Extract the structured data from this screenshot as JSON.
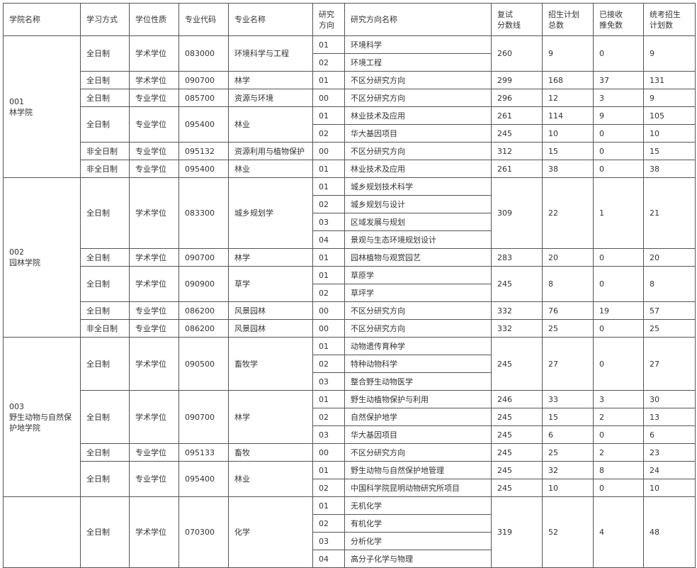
{
  "header": {
    "college": "学院名称",
    "mode": "学习方式",
    "degree": "学位性质",
    "code": "专业代码",
    "major": "专业名称",
    "dir_code": [
      "研究",
      "方向"
    ],
    "dir_name": "研究方向名称",
    "score": [
      "复试",
      "分数线"
    ],
    "total": [
      "招生计划",
      "总数"
    ],
    "recommended": [
      "已接收",
      "推免数"
    ],
    "plan": [
      "统考招生",
      "计划数"
    ]
  },
  "colleges": [
    {
      "code": "001",
      "name": "林学院",
      "majors": [
        {
          "mode": "全日制",
          "degree": "学术学位",
          "code": "083000",
          "name": "环境科学与工程",
          "score": "260",
          "total": "9",
          "recommended": "0",
          "plan": "9",
          "directions": [
            {
              "code": "01",
              "name": "环境科学"
            },
            {
              "code": "02",
              "name": "环境工程"
            }
          ]
        },
        {
          "mode": "全日制",
          "degree": "学术学位",
          "code": "090700",
          "name": "林学",
          "score": "299",
          "total": "168",
          "recommended": "37",
          "plan": "131",
          "directions": [
            {
              "code": "01",
              "name": "不区分研究方向"
            }
          ]
        },
        {
          "mode": "全日制",
          "degree": "专业学位",
          "code": "085700",
          "name": "资源与环境",
          "score": "296",
          "total": "12",
          "recommended": "3",
          "plan": "9",
          "directions": [
            {
              "code": "00",
              "name": "不区分研究方向"
            }
          ]
        },
        {
          "mode": "全日制",
          "degree": "专业学位",
          "code": "095400",
          "name": "林业",
          "directions": [
            {
              "code": "01",
              "name": "林业技术及应用",
              "score": "261",
              "total": "114",
              "recommended": "9",
              "plan": "105"
            },
            {
              "code": "02",
              "name": "华大基因项目",
              "score": "245",
              "total": "10",
              "recommended": "0",
              "plan": "10"
            }
          ]
        },
        {
          "mode": "非全日制",
          "degree": "专业学位",
          "code": "095132",
          "name": "资源利用与植物保护",
          "score": "312",
          "total": "15",
          "recommended": "0",
          "plan": "15",
          "directions": [
            {
              "code": "00",
              "name": "不区分研究方向"
            }
          ]
        },
        {
          "mode": "非全日制",
          "degree": "专业学位",
          "code": "095400",
          "name": "林业",
          "score": "261",
          "total": "38",
          "recommended": "0",
          "plan": "38",
          "directions": [
            {
              "code": "01",
              "name": "林业技术及应用"
            }
          ]
        }
      ]
    },
    {
      "code": "002",
      "name": "园林学院",
      "majors": [
        {
          "mode": "全日制",
          "degree": "学术学位",
          "code": "083300",
          "name": "城乡规划学",
          "score": "309",
          "total": "22",
          "recommended": "1",
          "plan": "21",
          "directions": [
            {
              "code": "01",
              "name": "城乡规划技术科学"
            },
            {
              "code": "02",
              "name": "城乡规划与设计"
            },
            {
              "code": "03",
              "name": "区域发展与规划"
            },
            {
              "code": "04",
              "name": "景观与生态环境规划设计"
            }
          ]
        },
        {
          "mode": "全日制",
          "degree": "学术学位",
          "code": "090700",
          "name": "林学",
          "score": "283",
          "total": "20",
          "recommended": "0",
          "plan": "20",
          "directions": [
            {
              "code": "01",
              "name": "园林植物与观赏园艺"
            }
          ]
        },
        {
          "mode": "全日制",
          "degree": "学术学位",
          "code": "090900",
          "name": "草学",
          "score": "245",
          "total": "8",
          "recommended": "0",
          "plan": "8",
          "directions": [
            {
              "code": "01",
              "name": "草原学"
            },
            {
              "code": "02",
              "name": "草坪学"
            }
          ]
        },
        {
          "mode": "全日制",
          "degree": "专业学位",
          "code": "086200",
          "name": "风景园林",
          "score": "332",
          "total": "76",
          "recommended": "19",
          "plan": "57",
          "directions": [
            {
              "code": "00",
              "name": "不区分研究方向"
            }
          ]
        },
        {
          "mode": "非全日制",
          "degree": "专业学位",
          "code": "086200",
          "name": "风景园林",
          "score": "332",
          "total": "25",
          "recommended": "0",
          "plan": "25",
          "directions": [
            {
              "code": "00",
              "name": "不区分研究方向"
            }
          ]
        }
      ]
    },
    {
      "code": "003",
      "name": "野生动物与自然保护地学院",
      "majors": [
        {
          "mode": "全日制",
          "degree": "学术学位",
          "code": "090500",
          "name": "畜牧学",
          "score": "245",
          "total": "27",
          "recommended": "0",
          "plan": "27",
          "directions": [
            {
              "code": "01",
              "name": "动物遗传育种学"
            },
            {
              "code": "02",
              "name": "特种动物科学"
            },
            {
              "code": "03",
              "name": "整合野生动物医学"
            }
          ]
        },
        {
          "mode": "全日制",
          "degree": "学术学位",
          "code": "090700",
          "name": "林学",
          "directions": [
            {
              "code": "01",
              "name": "野生动植物保护与利用",
              "score": "246",
              "total": "33",
              "recommended": "3",
              "plan": "30"
            },
            {
              "code": "02",
              "name": "自然保护地学",
              "score": "245",
              "total": "15",
              "recommended": "2",
              "plan": "13"
            },
            {
              "code": "03",
              "name": "华大基因项目",
              "score": "245",
              "total": "6",
              "recommended": "0",
              "plan": "6"
            }
          ]
        },
        {
          "mode": "全日制",
          "degree": "专业学位",
          "code": "095133",
          "name": "畜牧",
          "score": "245",
          "total": "25",
          "recommended": "2",
          "plan": "23",
          "directions": [
            {
              "code": "00",
              "name": "不区分研究方向"
            }
          ]
        },
        {
          "mode": "全日制",
          "degree": "专业学位",
          "code": "095400",
          "name": "林业",
          "directions": [
            {
              "code": "01",
              "name": "野生动物与自然保护地管理",
              "score": "245",
              "total": "32",
              "recommended": "8",
              "plan": "24"
            },
            {
              "code": "02",
              "name": "中国科学院昆明动物研究所项目",
              "score": "245",
              "total": "10",
              "recommended": "0",
              "plan": "10"
            }
          ]
        }
      ]
    },
    {
      "majors": [
        {
          "mode": "全日制",
          "degree": "学术学位",
          "code": "070300",
          "name": "化学",
          "score": "319",
          "total": "52",
          "recommended": "4",
          "plan": "48",
          "directions": [
            {
              "code": "01",
              "name": "无机化学"
            },
            {
              "code": "02",
              "name": "有机化学"
            },
            {
              "code": "03",
              "name": "分析化学"
            },
            {
              "code": "04",
              "name": "高分子化学与物理"
            }
          ]
        }
      ]
    }
  ]
}
